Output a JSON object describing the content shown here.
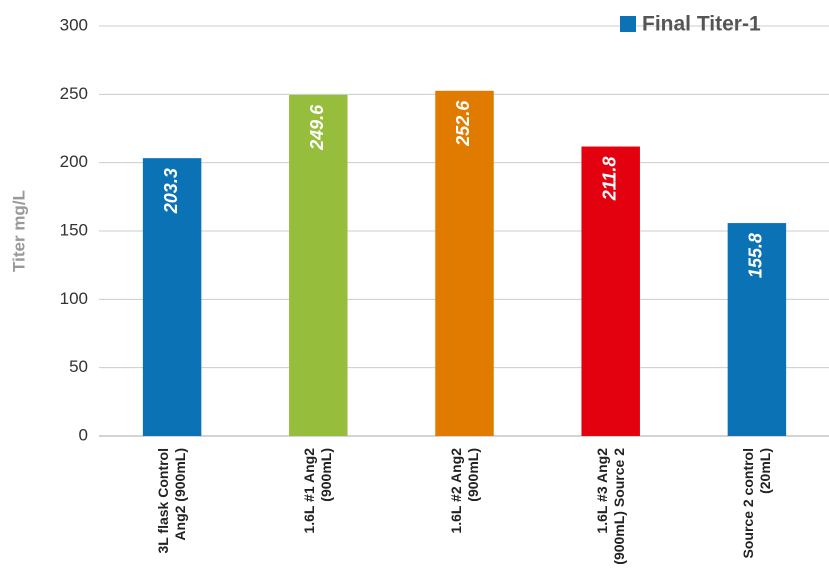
{
  "chart_data": {
    "type": "bar",
    "y_label": "Titer mg/L",
    "categories": [
      "3L flask Control\nAng2 (900mL)",
      "1.6L #1 Ang2\n(900mL)",
      "1.6L #2 Ang2\n(900mL)",
      "1.6L #3 Ang2\n(900mL) Source 2",
      "Source 2 control\n(20mL)"
    ],
    "series": [
      {
        "name": "Final Titer-1",
        "color": "#0b72b5",
        "values": [
          203.3,
          249.6,
          252.6,
          211.8,
          155.8
        ]
      }
    ],
    "colors": [
      "#0b72b5",
      "#96be3c",
      "#e07b00",
      "#e3000f",
      "#0b72b5"
    ],
    "ylim": [
      0,
      300
    ],
    "yticks": [
      0,
      50,
      100,
      150,
      200,
      250,
      300
    ],
    "grid": true,
    "legend": "top-right"
  }
}
